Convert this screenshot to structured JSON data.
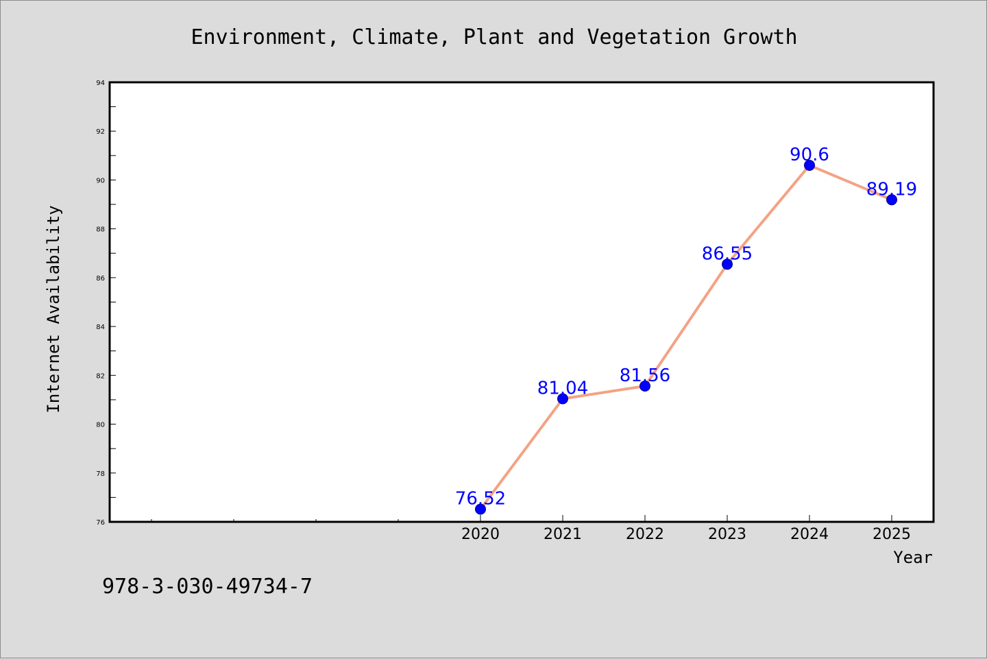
{
  "chart_data": {
    "type": "line",
    "title": "Environment, Climate, Plant and Vegetation Growth",
    "xlabel": "Year",
    "ylabel": "Internet Availability",
    "categories": [
      "2020",
      "2021",
      "2022",
      "2023",
      "2024",
      "2025"
    ],
    "series": [
      {
        "values": [
          76.52,
          81.04,
          81.56,
          86.55,
          90.6,
          89.19
        ],
        "labels": [
          "76.52",
          "81.04",
          "81.56",
          "86.55",
          "90.6",
          "89.19"
        ]
      }
    ],
    "x_slots": 10,
    "ylim": [
      76,
      94
    ],
    "yticks": [
      "76",
      "78",
      "80",
      "82",
      "84",
      "86",
      "88",
      "90",
      "92",
      "94"
    ],
    "grid": false,
    "legend": "none",
    "colors": {
      "line": "#f4a284",
      "marker": "#0000ff",
      "label": "#0000ff",
      "background": "#dcdcdc",
      "plot_bg": "#ffffff"
    }
  },
  "footnote": "978-3-030-49734-7"
}
